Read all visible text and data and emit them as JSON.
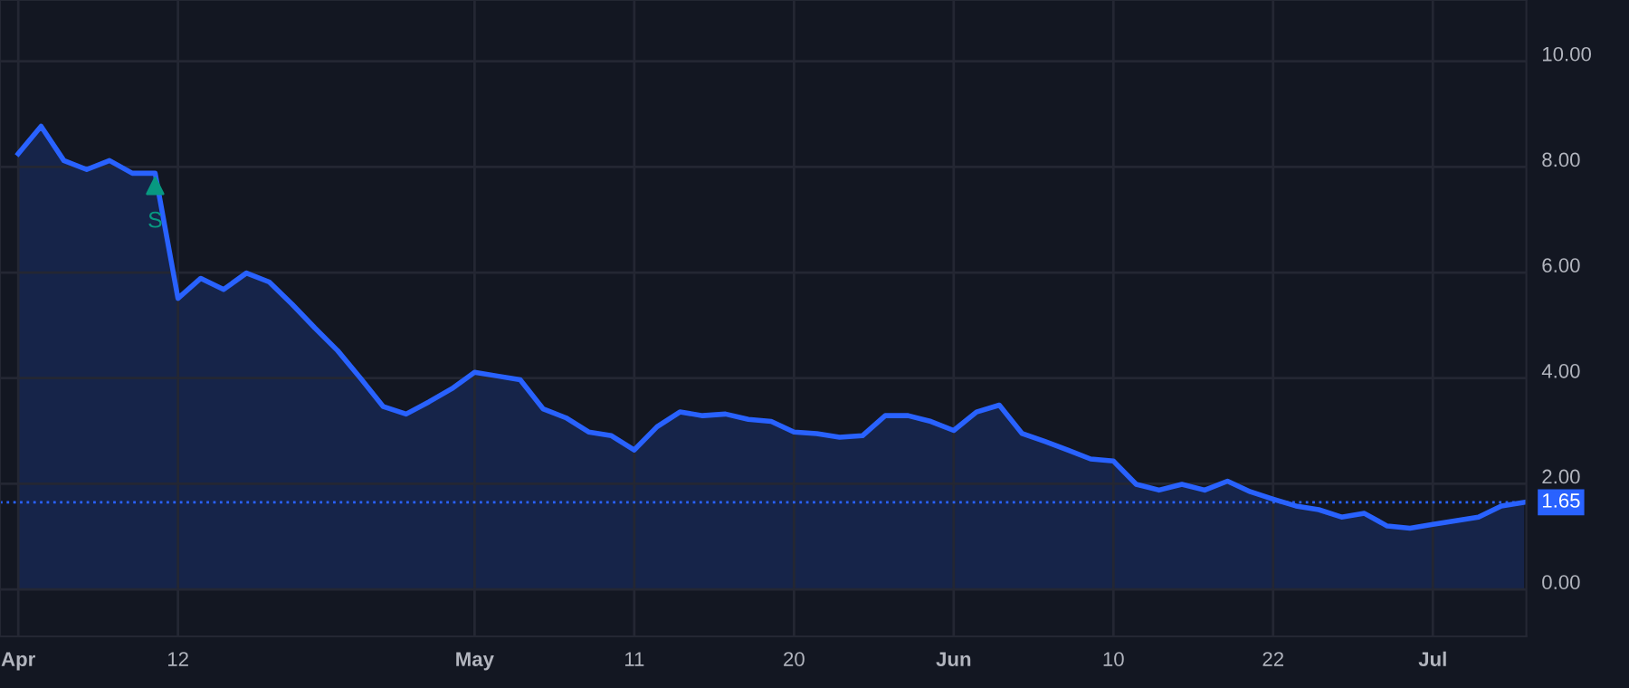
{
  "chart_data": {
    "type": "area",
    "categories": [
      "Apr",
      null,
      null,
      null,
      null,
      null,
      null,
      "12",
      null,
      null,
      null,
      null,
      null,
      null,
      null,
      null,
      null,
      null,
      null,
      null,
      "May",
      null,
      null,
      null,
      null,
      null,
      null,
      "11",
      null,
      null,
      null,
      null,
      null,
      null,
      "20",
      null,
      null,
      null,
      null,
      null,
      null,
      "Jun",
      null,
      null,
      null,
      null,
      null,
      null,
      "10",
      null,
      null,
      null,
      null,
      null,
      null,
      "22",
      null,
      null,
      null,
      null,
      null,
      null,
      "Jul",
      null,
      null,
      null,
      null
    ],
    "series": [
      {
        "color": "#2962ff",
        "values": [
          8.25,
          8.77,
          8.12,
          7.95,
          8.12,
          7.88,
          7.88,
          5.51,
          5.89,
          5.68,
          5.99,
          5.82,
          5.4,
          4.95,
          4.52,
          4.0,
          3.46,
          3.32,
          3.55,
          3.8,
          4.11,
          4.04,
          3.97,
          3.42,
          3.25,
          2.98,
          2.91,
          2.64,
          3.08,
          3.36,
          3.29,
          3.32,
          3.22,
          3.18,
          2.98,
          2.95,
          2.88,
          2.91,
          3.29,
          3.29,
          3.18,
          3.01,
          3.36,
          3.49,
          2.95,
          2.8,
          2.64,
          2.47,
          2.43,
          1.99,
          1.88,
          1.99,
          1.88,
          2.05,
          1.85,
          1.71,
          1.58,
          1.51,
          1.37,
          1.44,
          1.2,
          1.16,
          1.23,
          1.3,
          1.37,
          1.58,
          1.65
        ]
      }
    ],
    "ylim": [
      -0.89,
      11.16
    ],
    "yticks": [
      {
        "value": 0,
        "label": "0.00"
      },
      {
        "value": 2,
        "label": "2.00"
      },
      {
        "value": 4,
        "label": "4.00"
      },
      {
        "value": 6,
        "label": "6.00"
      },
      {
        "value": 8,
        "label": "8.00"
      },
      {
        "value": 10,
        "label": "10.00"
      }
    ],
    "grid": true,
    "ref_lines": [
      {
        "axis": "y",
        "value": 1.65,
        "label": "1.65",
        "color": "#2962ff",
        "line_style": "dotted"
      }
    ],
    "annotations": [
      {
        "text": "S",
        "y": 7.64
      }
    ],
    "legend": false
  }
}
